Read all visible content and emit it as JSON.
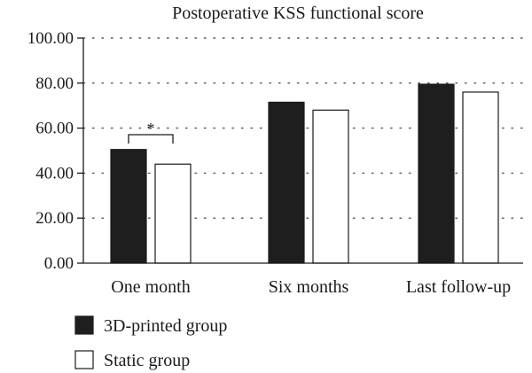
{
  "chart_data": {
    "type": "bar",
    "title": "Postoperative KSS functional score",
    "xlabel": "",
    "ylabel": "",
    "categories": [
      "One month",
      "Six months",
      "Last follow-up"
    ],
    "series": [
      {
        "name": "3D-printed group",
        "values": [
          50.5,
          71.5,
          79.5
        ],
        "color": "#1e1e1e"
      },
      {
        "name": "Static group",
        "values": [
          44.0,
          68.0,
          76.0
        ],
        "color": "#ffffff"
      }
    ],
    "ylim": [
      0,
      100
    ],
    "yticks": [
      0,
      20,
      40,
      60,
      80,
      100
    ],
    "ytick_labels": [
      "0.00",
      "20.00",
      "40.00",
      "60.00",
      "80.00",
      "100.00"
    ],
    "grid": "horizontal-dotted",
    "legend_position": "bottom-left",
    "annotations": [
      {
        "text": "*",
        "category": "One month",
        "type": "significance-bracket"
      }
    ]
  }
}
